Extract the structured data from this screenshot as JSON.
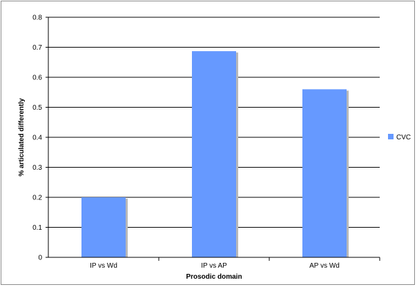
{
  "chart_data": {
    "type": "bar",
    "categories": [
      "IP vs Wd",
      "IP vs AP",
      "AP vs Wd"
    ],
    "series": [
      {
        "name": "CVC",
        "values": [
          0.2,
          0.687,
          0.56
        ],
        "color": "#6699FF"
      }
    ],
    "xlabel": "Prosodic domain",
    "ylabel": "% articulated differently",
    "ylim": [
      0,
      0.8
    ],
    "yticks": [
      0,
      0.1,
      0.2,
      0.3,
      0.4,
      0.5,
      0.6,
      0.7,
      0.8
    ],
    "ytick_labels": [
      "0",
      "0.1",
      "0.2",
      "0.3",
      "0.4",
      "0.5",
      "0.6",
      "0.7",
      "0.8"
    ],
    "grid": true,
    "legend_position": "right"
  }
}
